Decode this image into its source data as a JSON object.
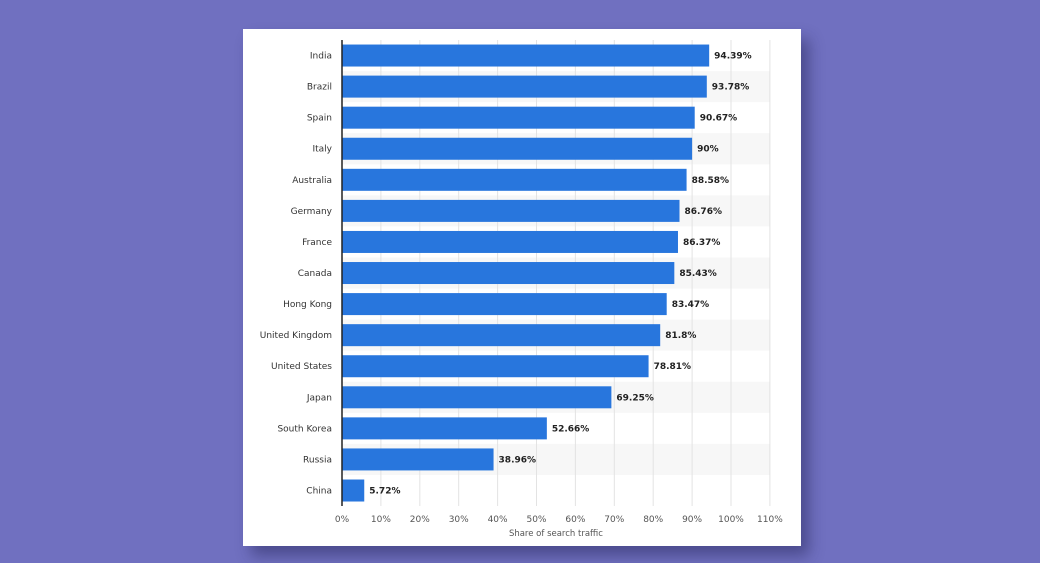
{
  "chart_data": {
    "type": "bar",
    "orientation": "horizontal",
    "categories": [
      "India",
      "Brazil",
      "Spain",
      "Italy",
      "Australia",
      "Germany",
      "France",
      "Canada",
      "Hong Kong",
      "United Kingdom",
      "United States",
      "Japan",
      "South Korea",
      "Russia",
      "China"
    ],
    "values": [
      94.39,
      93.78,
      90.67,
      90,
      88.58,
      86.76,
      86.37,
      85.43,
      83.47,
      81.8,
      78.81,
      69.25,
      52.66,
      38.96,
      5.72
    ],
    "value_labels": [
      "94.39%",
      "93.78%",
      "90.67%",
      "90%",
      "88.58%",
      "86.76%",
      "86.37%",
      "85.43%",
      "83.47%",
      "81.8%",
      "78.81%",
      "69.25%",
      "52.66%",
      "38.96%",
      "5.72%"
    ],
    "xlabel": "Share of search traffic",
    "ylabel": "",
    "xlim": [
      0,
      110
    ],
    "x_ticks": [
      "0%",
      "10%",
      "20%",
      "30%",
      "40%",
      "50%",
      "60%",
      "70%",
      "80%",
      "90%",
      "100%",
      "110%"
    ],
    "grid": true,
    "colors": {
      "bar": "#2876dd",
      "background": "#7070c0",
      "band": "#f7f7f7",
      "grid": "#e3e3e3"
    }
  }
}
